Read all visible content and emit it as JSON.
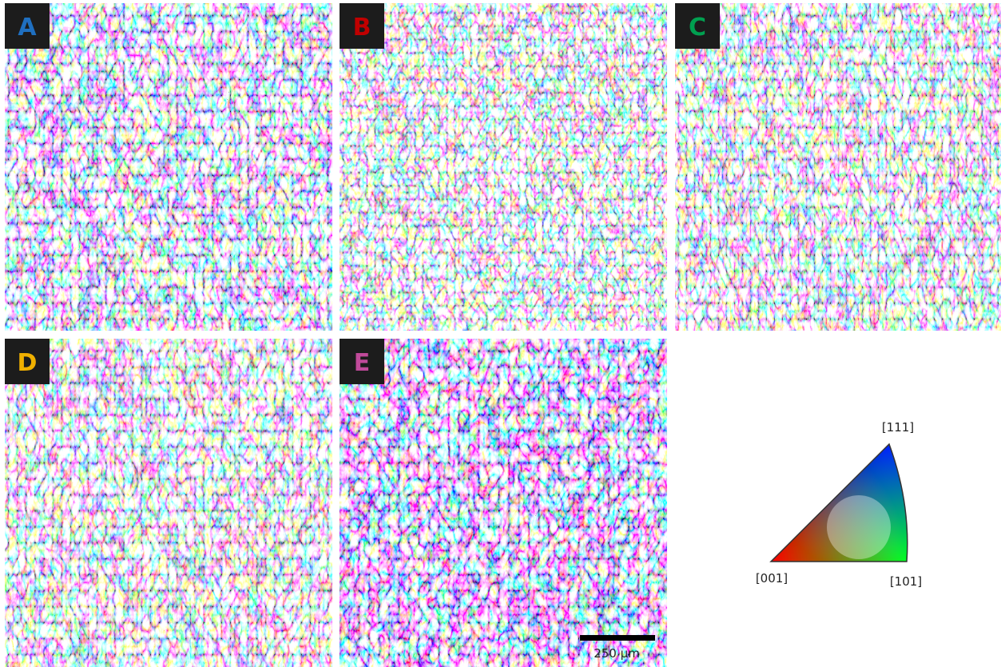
{
  "panels": [
    {
      "label": "A"
    },
    {
      "label": "B"
    },
    {
      "label": "C"
    },
    {
      "label": "D"
    },
    {
      "label": "E"
    }
  ],
  "legend": {
    "top": "[111]",
    "left": "[001]",
    "right": "[101]"
  },
  "scale_bar": {
    "label": "250 µm"
  }
}
